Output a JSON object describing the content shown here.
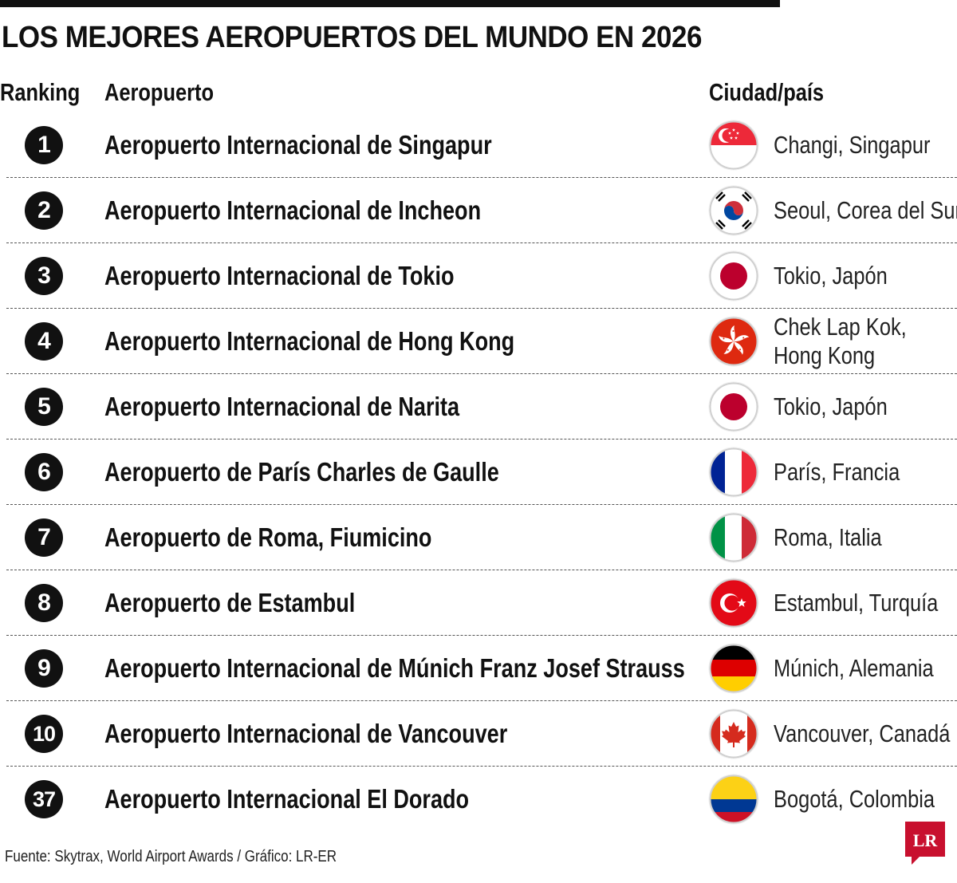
{
  "title": "LOS MEJORES AEROPUERTOS DEL MUNDO EN 2026",
  "headers": {
    "rank": "Ranking",
    "airport": "Aeropuerto",
    "city": "Ciudad/país"
  },
  "rows": [
    {
      "rank": "1",
      "airport": "Aeropuerto Internacional de Singapur",
      "city_line1": "Changi, Singapur",
      "city_line2": "",
      "flag": "singapore-flag"
    },
    {
      "rank": "2",
      "airport": "Aeropuerto Internacional de Incheon",
      "city_line1": "Seoul, Corea del Sur",
      "city_line2": "",
      "flag": "south-korea-flag"
    },
    {
      "rank": "3",
      "airport": "Aeropuerto Internacional de Tokio",
      "city_line1": "Tokio, Japón",
      "city_line2": "",
      "flag": "japan-flag"
    },
    {
      "rank": "4",
      "airport": "Aeropuerto Internacional de Hong Kong",
      "city_line1": "Chek Lap Kok,",
      "city_line2": "Hong Kong",
      "flag": "hong-kong-flag"
    },
    {
      "rank": "5",
      "airport": "Aeropuerto Internacional de Narita",
      "city_line1": "Tokio, Japón",
      "city_line2": "",
      "flag": "japan-flag"
    },
    {
      "rank": "6",
      "airport": "Aeropuerto de París Charles de Gaulle",
      "city_line1": "París, Francia",
      "city_line2": "",
      "flag": "france-flag"
    },
    {
      "rank": "7",
      "airport": "Aeropuerto de Roma, Fiumicino",
      "city_line1": "Roma, Italia",
      "city_line2": "",
      "flag": "italy-flag"
    },
    {
      "rank": "8",
      "airport": "Aeropuerto de Estambul",
      "city_line1": "Estambul, Turquía",
      "city_line2": "",
      "flag": "turkey-flag"
    },
    {
      "rank": "9",
      "airport": "Aeropuerto Internacional de Múnich Franz Josef Strauss",
      "city_line1": "Múnich, Alemania",
      "city_line2": "",
      "flag": "germany-flag"
    },
    {
      "rank": "10",
      "airport": "Aeropuerto Internacional de Vancouver",
      "city_line1": "Vancouver, Canadá",
      "city_line2": "",
      "flag": "canada-flag"
    },
    {
      "rank": "37",
      "airport": "Aeropuerto Internacional El Dorado",
      "city_line1": "Bogotá, Colombia",
      "city_line2": "",
      "flag": "colombia-flag"
    }
  ],
  "source": "Fuente: Skytrax, World Airport Awards / Gráfico: LR-ER",
  "logo_text": "LR",
  "colors": {
    "text": "#111111",
    "logo_red": "#c8102e"
  }
}
